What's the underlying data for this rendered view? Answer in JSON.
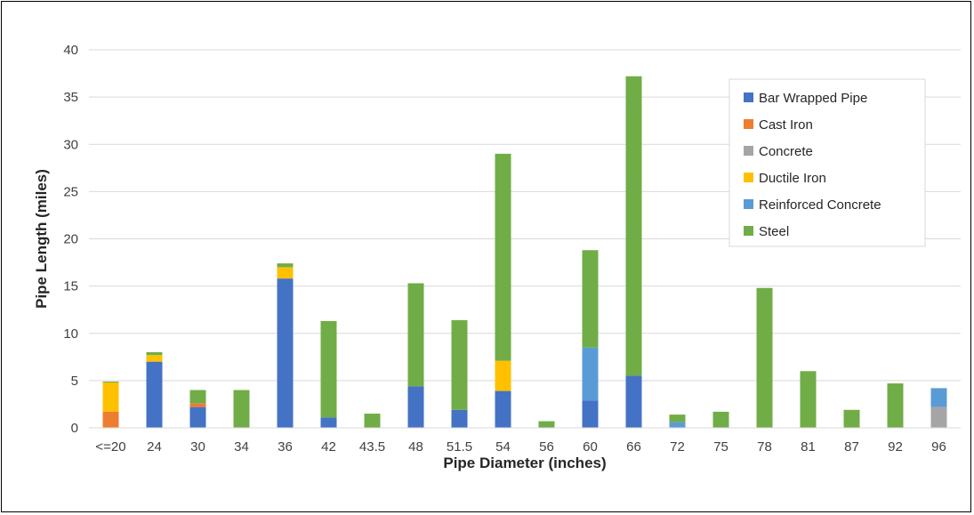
{
  "chart_data": {
    "type": "bar",
    "stacked": true,
    "title": "",
    "xlabel": "Pipe Diameter (inches)",
    "ylabel": "Pipe Length (miles)",
    "ylim": [
      0,
      40
    ],
    "yticks": [
      "0",
      "5",
      "10",
      "15",
      "20",
      "25",
      "30",
      "35",
      "40"
    ],
    "grid": true,
    "legend_position": "top-right",
    "categories": [
      "<=20",
      "24",
      "30",
      "34",
      "36",
      "42",
      "43.5",
      "48",
      "51.5",
      "54",
      "56",
      "60",
      "66",
      "72",
      "75",
      "78",
      "81",
      "87",
      "92",
      "96"
    ],
    "series": [
      {
        "name": "Bar Wrapped Pipe",
        "color": "#4472C4",
        "values": [
          0,
          7.0,
          2.2,
          0,
          15.8,
          1.1,
          0,
          4.4,
          1.9,
          3.9,
          0,
          2.9,
          5.5,
          0,
          0,
          0,
          0,
          0,
          0,
          0
        ]
      },
      {
        "name": "Cast Iron",
        "color": "#ED7D31",
        "values": [
          1.7,
          0,
          0.4,
          0,
          0,
          0,
          0,
          0,
          0,
          0,
          0,
          0,
          0,
          0,
          0,
          0,
          0,
          0,
          0,
          0
        ]
      },
      {
        "name": "Concrete",
        "color": "#A5A5A5",
        "values": [
          0,
          0,
          0,
          0,
          0,
          0,
          0,
          0,
          0,
          0,
          0,
          0,
          0,
          0,
          0,
          0,
          0,
          0,
          0,
          2.2
        ]
      },
      {
        "name": "Ductile Iron",
        "color": "#FFC000",
        "values": [
          3.1,
          0.7,
          0,
          0,
          1.2,
          0,
          0,
          0,
          0,
          3.2,
          0,
          0,
          0,
          0,
          0,
          0,
          0,
          0,
          0,
          0
        ]
      },
      {
        "name": "Reinforced Concrete",
        "color": "#5B9BD5",
        "values": [
          0,
          0,
          0,
          0,
          0,
          0,
          0,
          0,
          0,
          0,
          0,
          5.6,
          0,
          0.6,
          0,
          0,
          0,
          0,
          0,
          2.0
        ]
      },
      {
        "name": "Steel",
        "color": "#70AD47",
        "values": [
          0.1,
          0.3,
          1.4,
          4.0,
          0.4,
          10.2,
          1.5,
          10.9,
          9.5,
          21.9,
          0.7,
          10.3,
          31.7,
          0.8,
          1.7,
          14.8,
          6.0,
          1.9,
          4.7,
          0
        ]
      }
    ]
  }
}
